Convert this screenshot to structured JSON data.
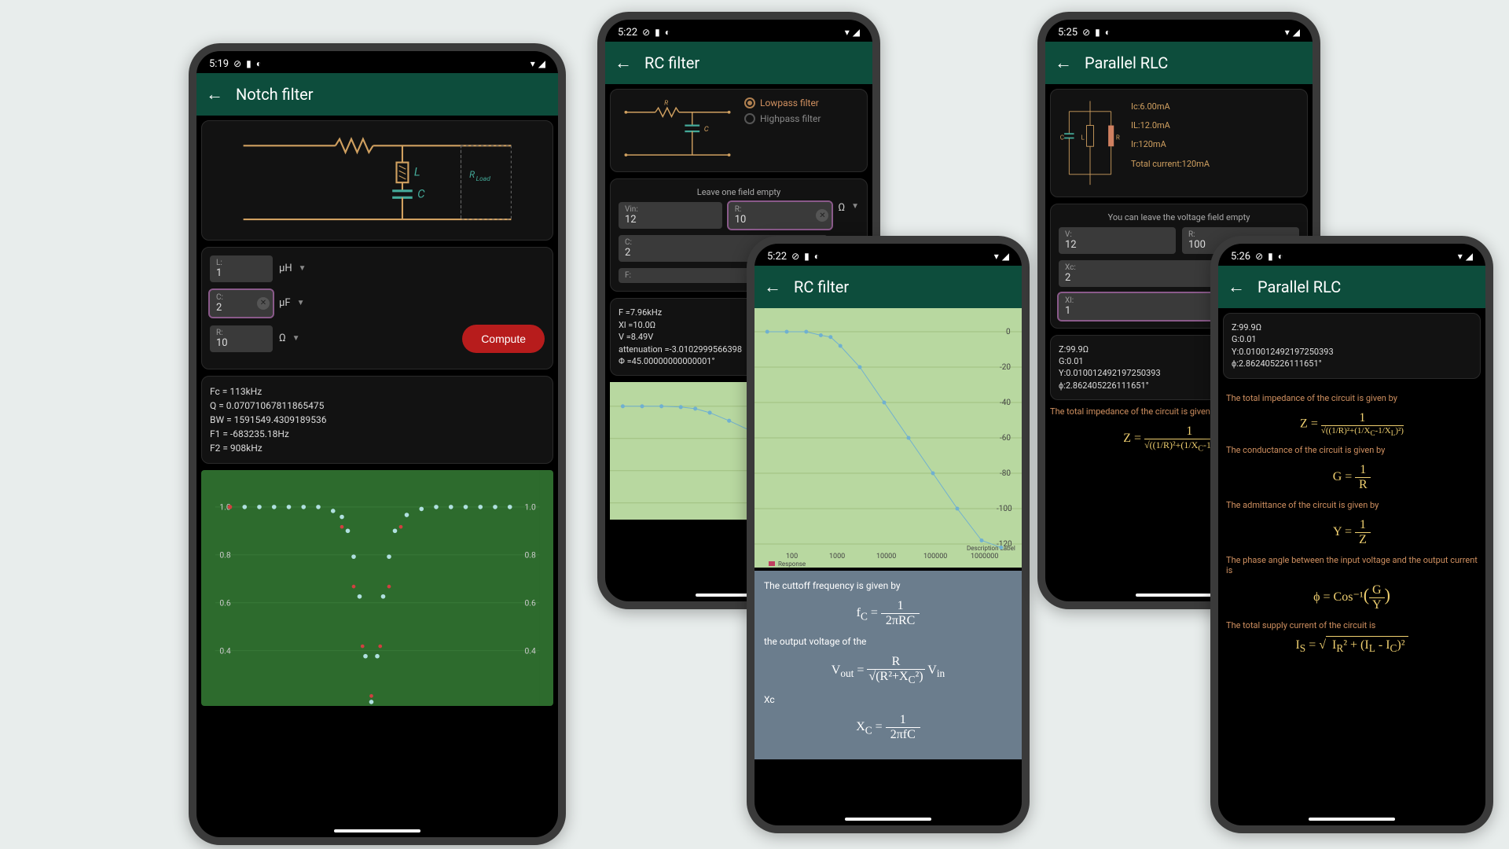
{
  "colors": {
    "page_bg": "#e8edec",
    "phone_frame": "#3a3a3a",
    "screen_bg": "#000000",
    "appbar_bg": "#0d4d3c",
    "card_bg": "#121212",
    "input_bg": "#3a3a3a",
    "compute_btn": "#b71c1c",
    "chart_green": "#2d6b2d",
    "chart_light_green": "#b8d8a0",
    "explain_blue": "#6b7d8d",
    "formula_yellow": "#f0d070",
    "accent_orange": "#d09060"
  },
  "p1": {
    "time": "5:19",
    "title": "Notch filter",
    "circuit": {
      "L": "L",
      "C": "C",
      "Rload": "R_load"
    },
    "inputs": {
      "L": {
        "label": "L:",
        "value": "1",
        "unit": "µH"
      },
      "C": {
        "label": "C:",
        "value": "2",
        "unit": "µF",
        "active": true
      },
      "R": {
        "label": "R:",
        "value": "10",
        "unit": "Ω"
      }
    },
    "compute": "Compute",
    "results": {
      "Fc": "Fc = 113kHz",
      "Q": "Q = 0.07071067811865475",
      "BW": "BW = 1591549.4309189536",
      "F1": "F1 = -683235.18Hz",
      "F2": "F2 = 908kHz"
    },
    "chart": {
      "type": "line",
      "bg": "#2d6b2d",
      "grid_color": "#3a7a3a",
      "line1_color": "#b0e0e0",
      "line2_color": "#d04040",
      "ylim": [
        0,
        1.0
      ],
      "yticks": [
        "0.4",
        "0.6",
        "0.8",
        "1.0"
      ],
      "notch_x": 0.48,
      "response_x": [
        0.05,
        0.1,
        0.15,
        0.2,
        0.25,
        0.3,
        0.35,
        0.38,
        0.4,
        0.42,
        0.44,
        0.46,
        0.48,
        0.5,
        0.52,
        0.54,
        0.56,
        0.6,
        0.65,
        0.7,
        0.75,
        0.8,
        0.85,
        0.9,
        0.95
      ],
      "response_y": [
        1.0,
        1.0,
        1.0,
        1.0,
        1.0,
        1.0,
        0.98,
        0.95,
        0.88,
        0.75,
        0.55,
        0.25,
        0.02,
        0.25,
        0.55,
        0.75,
        0.88,
        0.96,
        0.99,
        1.0,
        1.0,
        1.0,
        1.0,
        1.0,
        1.0
      ]
    }
  },
  "p2": {
    "time": "5:22",
    "title": "RC filter",
    "circuit": {
      "R": "R",
      "C": "C"
    },
    "filter_type": {
      "lowpass": "Lowpass filter",
      "highpass": "Highpass filter",
      "selected": "lowpass"
    },
    "hint": "Leave one field empty",
    "inputs": {
      "Vin": {
        "label": "Vin:",
        "value": "12"
      },
      "R": {
        "label": "R:",
        "value": "10",
        "unit": "Ω",
        "active": true
      },
      "C": {
        "label": "C:",
        "value": "2",
        "unit": "µF"
      },
      "F": {
        "label": "F:",
        "value": "",
        "unit": "MHz"
      }
    },
    "results": {
      "F": "F =7.96kHz",
      "Xl": "Xl =10.0Ω",
      "V": "V =8.49V",
      "att": "attenuation =-3.0102999566398",
      "phi": "Φ =45.00000000000001°"
    },
    "chart": {
      "type": "line",
      "bg": "#b8d8a0",
      "line_color": "#70b0d0",
      "yticks": [
        "0",
        "-20"
      ],
      "xticks": []
    }
  },
  "p3": {
    "time": "5:22",
    "title": "RC filter",
    "chart": {
      "type": "line",
      "bg": "#b8d8a0",
      "line_color": "#70b0d0",
      "yticks": [
        "0",
        "-20",
        "-40",
        "-60",
        "-80",
        "-100",
        "-120"
      ],
      "xticks": [
        "100",
        "1000",
        "10000",
        "100000",
        "1000000"
      ],
      "xlabel": "Description Label",
      "legend": "Response",
      "cutoff_x": 0.28,
      "response_x": [
        0.02,
        0.1,
        0.18,
        0.24,
        0.28,
        0.32,
        0.4,
        0.5,
        0.6,
        0.7,
        0.8,
        0.9,
        0.98
      ],
      "response_y": [
        0,
        0,
        0,
        -2,
        -3,
        -8,
        -20,
        -40,
        -60,
        -80,
        -100,
        -118,
        -122
      ]
    },
    "explain": {
      "t1": "The cuttoff frequency is given by",
      "f1": "f_C = 1 / (2πRC)",
      "t2": "the output voltage of the",
      "f2": "V_out = (R / √(R² + X_C²)) · V_in",
      "t3": "Xc",
      "f3": "X_C = 1 / (2πfC)"
    }
  },
  "p4": {
    "time": "5:25",
    "title": "Parallel RLC",
    "values": {
      "Ic": "Ic:6.00mA",
      "IL": "IL:12.0mA",
      "Ir": "Ir:120mA",
      "Itot": "Total current:120mA"
    },
    "hint": "You can leave the voltage field empty",
    "inputs": {
      "V": {
        "label": "V:",
        "value": "12"
      },
      "R": {
        "label": "R:",
        "value": "100"
      },
      "Xc": {
        "label": "Xc:",
        "value": "2",
        "unit": "KΩ"
      },
      "Xl": {
        "label": "Xl:",
        "value": "1",
        "unit": "KΩ",
        "active": true
      }
    },
    "results": {
      "Z": "Z:99.9Ω",
      "G": "G:0.01",
      "Y": "Y:0.010012492197250393",
      "phi": "ϕ:2.862405226111651°"
    },
    "explain": {
      "t1": "The total impedance of the circuit is given by",
      "f1": "Z = 1 / √((1/R)² + (1/X_C - 1/X_L)²)"
    }
  },
  "p5": {
    "time": "5:26",
    "title": "Parallel RLC",
    "results": {
      "Z": "Z:99.9Ω",
      "G": "G:0.01",
      "Y": "Y:0.010012492197250393",
      "phi": "ϕ:2.862405226111651°"
    },
    "explain": {
      "t1": "The total impedance of the circuit is given by",
      "f1": "Z = 1 / √((1/R)² + (1/X_C - 1/X_L)²)",
      "t2": "The conductance of the circuit is given by",
      "f2": "G = 1 / R",
      "t3": "The admittance of the circuit is given by",
      "f3": "Y = 1 / Z",
      "t4": "The phase angle between the input voltage and the output current is",
      "f4": "ϕ = Cos⁻¹(G / Y)",
      "t5": "The total supply current of the circuit is",
      "f5": "I_S = √(I_R² + (I_L - I_C)²)"
    }
  }
}
